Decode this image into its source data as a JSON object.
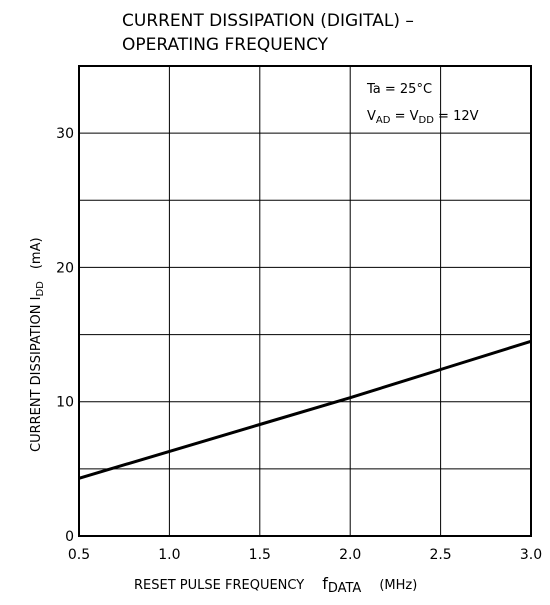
{
  "chart_data": {
    "type": "line",
    "title_line1": "CURRENT DISSIPATION (DIGITAL) –",
    "title_line2": "OPERATING FREQUENCY",
    "xlabel": {
      "main": "RESET PULSE FREQUENCY",
      "symbol": "f",
      "subscript": "DATA",
      "unit": "(MHz)"
    },
    "ylabel": {
      "main": "CURRENT DISSIPATION I",
      "subscript": "DD",
      "unit": "(mA)"
    },
    "xlim": [
      0.5,
      3.0
    ],
    "ylim": [
      0,
      35
    ],
    "x_ticks": [
      0.5,
      1.0,
      1.5,
      2.0,
      2.5,
      3.0
    ],
    "x_tick_labels": [
      "0.5",
      "1.0",
      "1.5",
      "2.0",
      "2.5",
      "3.0"
    ],
    "y_ticks": [
      0,
      10,
      20,
      30
    ],
    "y_tick_labels": [
      "0",
      "10",
      "20",
      "30"
    ],
    "x_gridlines": [
      0.5,
      1.0,
      1.5,
      2.0,
      2.5,
      3.0
    ],
    "y_gridlines": [
      5,
      10,
      15,
      20,
      25,
      30
    ],
    "grid": true,
    "series": [
      {
        "x": [
          0.5,
          1.0,
          1.5,
          2.0,
          2.5,
          3.0
        ],
        "y": [
          4.3,
          6.3,
          8.3,
          10.3,
          12.4,
          14.5
        ]
      }
    ],
    "annotation": {
      "condition1": "Ta = 25°C",
      "condition2_v1": "V",
      "condition2_sub1": "AD",
      "condition2_mid": " = V",
      "condition2_sub2": "DD",
      "condition2_end": " = 12V",
      "position": "top-right"
    }
  }
}
